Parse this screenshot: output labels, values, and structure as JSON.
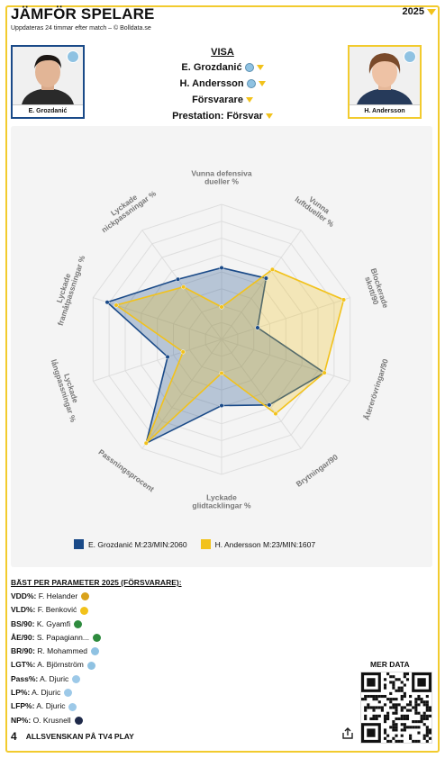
{
  "header": {
    "title": "JÄMFÖR SPELARE",
    "subtitle": "Uppdateras 24 timmar efter match – © Bolldata.se",
    "year": "2025"
  },
  "players": {
    "left": {
      "name": "E. Grozdanić"
    },
    "right": {
      "name": "H. Andersson"
    }
  },
  "selector": {
    "heading": "VISA",
    "player1": "E. Grozdanić",
    "player2": "H. Andersson",
    "position": "Försvarare",
    "preset": "Prestation: Försvar"
  },
  "colors": {
    "card_border": "#f2cb2e",
    "series1": "#1a4a88",
    "series2": "#f2c21b",
    "panel": "#f4f4f4"
  },
  "chart_data": {
    "type": "radar",
    "axes": [
      "Vunna defensiva dueller %",
      "Vunna luftdueller %",
      "Blockerade skott/90",
      "Återerövringar/90",
      "Brytningar/90",
      "Lyckade glidtacklingar %",
      "Passningsprocent",
      "Lyckade långpassningar %",
      "Lyckade framåtpassningar %",
      "Lyckade nickpassningar %"
    ],
    "axis_lines": [
      [
        "Vunna defensiva",
        "dueller %"
      ],
      [
        "Vunna",
        "luftdueller %"
      ],
      [
        "Blockerade",
        "skott/90"
      ],
      [
        "Återerövringar/90"
      ],
      [
        "Brytningar/90"
      ],
      [
        "Lyckade",
        "glidtacklingar %"
      ],
      [
        "Passningsprocent"
      ],
      [
        "Lyckade",
        "långpassningar %"
      ],
      [
        "Lyckade",
        "framåtpassningar %"
      ],
      [
        "Lyckade",
        "nickpassningar %"
      ]
    ],
    "rmax": 1,
    "rings": 8,
    "series": [
      {
        "name": "E. Grozdanić M:23/MIN:2060",
        "color": "#1a4a88",
        "values": [
          0.53,
          0.56,
          0.28,
          0.8,
          0.6,
          0.49,
          0.95,
          0.42,
          0.89,
          0.55
        ]
      },
      {
        "name": "H. Andersson M:23/MIN:1607",
        "color": "#f2c21b",
        "values": [
          0.24,
          0.64,
          0.95,
          0.8,
          0.68,
          0.25,
          0.95,
          0.3,
          0.82,
          0.48
        ]
      }
    ]
  },
  "best": {
    "title": "BÄST PER PARAMETER 2025 (FÖRSVARARE):",
    "items": [
      {
        "key": "VDD%:",
        "name": "F. Helander",
        "color": "#d9a21b"
      },
      {
        "key": "VLD%:",
        "name": "F. Benković",
        "color": "#f2c21b"
      },
      {
        "key": "BS/90:",
        "name": "K. Gyamfi",
        "color": "#2e8b3e"
      },
      {
        "key": "ÅE/90:",
        "name": "S. Papagiann...",
        "color": "#2e8b3e"
      },
      {
        "key": "BR/90:",
        "name": "R. Mohammed",
        "color": "#8fc2e2"
      },
      {
        "key": "LGT%:",
        "name": "A. Björnström",
        "color": "#8fc2e2"
      },
      {
        "key": "Pass%:",
        "name": "A. Djuric",
        "color": "#9dc9e8"
      },
      {
        "key": "LP%:",
        "name": "A. Djuric",
        "color": "#9dc9e8"
      },
      {
        "key": "LFP%:",
        "name": "A. Djuric",
        "color": "#9dc9e8"
      },
      {
        "key": "NP%:",
        "name": "O. Krusnell",
        "color": "#1f2a4a"
      }
    ]
  },
  "more": {
    "label": "MER DATA"
  },
  "footer": {
    "logo": "4",
    "label": "ALLSVENSKAN PÅ TV4 PLAY"
  }
}
